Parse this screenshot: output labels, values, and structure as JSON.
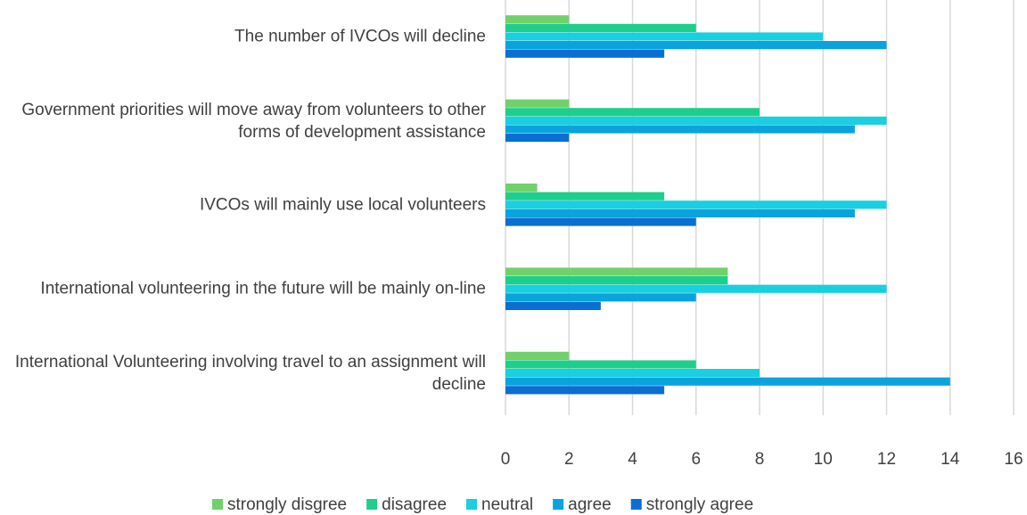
{
  "chart_data": {
    "type": "bar",
    "orientation": "horizontal",
    "categories": [
      "The number of IVCOs will decline",
      "Government priorities will move away from volunteers to other forms of development assistance",
      "IVCOs will mainly use local volunteers",
      "International volunteering in the future will be mainly on-line",
      "International Volunteering involving travel to an assignment will decline"
    ],
    "series": [
      {
        "name": "strongly disgree",
        "color": "#70d16a",
        "values": [
          2,
          2,
          1,
          7,
          2
        ]
      },
      {
        "name": "disagree",
        "color": "#1ecf8c",
        "values": [
          6,
          8,
          5,
          7,
          6
        ]
      },
      {
        "name": "neutral",
        "color": "#19cfe0",
        "values": [
          10,
          12,
          12,
          12,
          8
        ]
      },
      {
        "name": "agree",
        "color": "#0ba3dd",
        "values": [
          12,
          11,
          11,
          6,
          14
        ]
      },
      {
        "name": "strongly agree",
        "color": "#0b6fd1",
        "values": [
          5,
          2,
          6,
          3,
          5
        ]
      }
    ],
    "xlim": [
      0,
      16
    ],
    "xticks": [
      0,
      2,
      4,
      6,
      8,
      10,
      12,
      14,
      16
    ],
    "grid": true,
    "legend": "bottom"
  }
}
